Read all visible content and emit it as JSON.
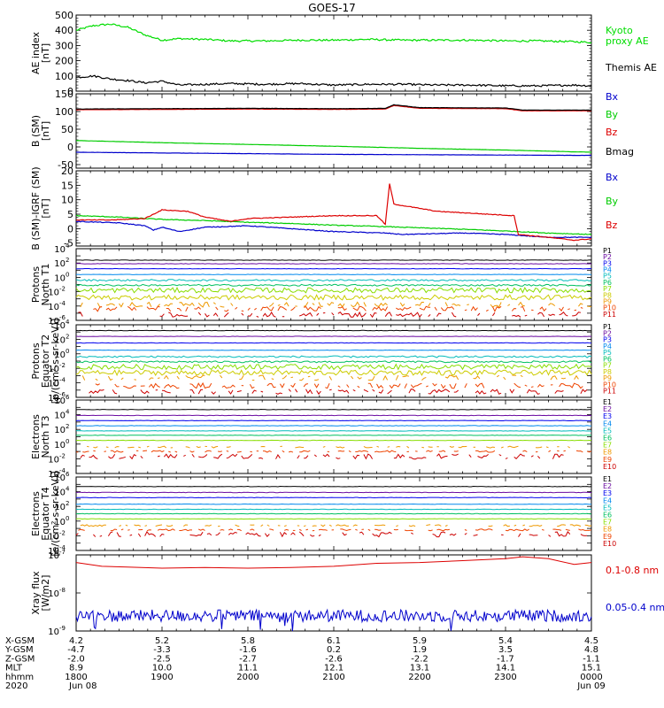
{
  "title": "GOES-17",
  "chart_data": [
    {
      "type": "line",
      "panel": "ae-index",
      "ylabel": [
        "AE index",
        "[nT]"
      ],
      "ylim": [
        0,
        500
      ],
      "yticks": [
        "0",
        "100",
        "200",
        "300",
        "400",
        "500"
      ],
      "series": [
        {
          "name": "Kyoto proxy AE",
          "legend": [
            "Kyoto",
            "proxy AE"
          ],
          "color": "#00dd00",
          "x": [
            0,
            0.2,
            0.4,
            0.6,
            0.8,
            1.0,
            1.2,
            1.5,
            1.8,
            2.2,
            2.6,
            3.0,
            3.4,
            3.8,
            4.2,
            4.6,
            5.0,
            5.4,
            5.8,
            6.0
          ],
          "y": [
            400,
            430,
            440,
            420,
            370,
            335,
            345,
            340,
            330,
            330,
            335,
            335,
            340,
            335,
            335,
            335,
            330,
            330,
            325,
            320
          ]
        },
        {
          "name": "Themis AE",
          "legend": [
            "Themis AE"
          ],
          "color": "#000000",
          "x": [
            0,
            0.2,
            0.4,
            0.6,
            0.8,
            1.0,
            1.2,
            1.5,
            1.8,
            2.2,
            2.6,
            3.0,
            3.4,
            3.8,
            4.2,
            4.6,
            5.0,
            5.4,
            5.8,
            6.0
          ],
          "y": [
            90,
            100,
            80,
            70,
            55,
            65,
            40,
            45,
            50,
            45,
            50,
            40,
            45,
            45,
            40,
            40,
            35,
            35,
            40,
            35
          ]
        }
      ]
    },
    {
      "type": "line",
      "panel": "b-sm",
      "ylabel": [
        "B (SM)",
        "[nT]"
      ],
      "ylim": [
        -60,
        150
      ],
      "yticks": [
        "-50",
        "0",
        "50",
        "100",
        "150"
      ],
      "ytick_values": [
        -50,
        0,
        50,
        100,
        150
      ],
      "series": [
        {
          "name": "Bx",
          "color": "#0000cc",
          "x": [
            0,
            1,
            2,
            3,
            4,
            5,
            6
          ],
          "y": [
            -15,
            -17,
            -19,
            -21,
            -22,
            -23,
            -24
          ]
        },
        {
          "name": "By",
          "color": "#00cc00",
          "x": [
            0,
            1,
            2,
            3,
            4,
            5,
            6
          ],
          "y": [
            18,
            12,
            7,
            2,
            -4,
            -9,
            -15
          ]
        },
        {
          "name": "Bz",
          "color": "#dd0000",
          "x": [
            0,
            1,
            2,
            3,
            3.6,
            3.7,
            4,
            5,
            5.2,
            6
          ],
          "y": [
            105,
            106,
            107,
            106,
            107,
            117,
            109,
            108,
            102,
            102
          ]
        },
        {
          "name": "Bmag",
          "color": "#000000",
          "x": [
            0,
            1,
            2,
            3,
            3.6,
            3.7,
            4,
            5,
            5.2,
            6
          ],
          "y": [
            107,
            108,
            109,
            108,
            109,
            119,
            111,
            110,
            104,
            104
          ]
        }
      ]
    },
    {
      "type": "line",
      "panel": "b-minus-igrf",
      "ylabel": [
        "B (SM)-IGRF (SM)",
        "[nT]"
      ],
      "ylim": [
        -6,
        20
      ],
      "yticks": [
        "-5",
        "0",
        "5",
        "10",
        "15",
        "20"
      ],
      "ytick_values": [
        -5,
        0,
        5,
        10,
        15,
        20
      ],
      "series": [
        {
          "name": "Bx",
          "color": "#0000cc",
          "x": [
            0,
            0.5,
            0.8,
            0.9,
            1.0,
            1.2,
            1.5,
            2.0,
            2.5,
            3.0,
            3.6,
            3.8,
            4.5,
            5.0,
            5.5,
            6.0
          ],
          "y": [
            2.5,
            2,
            1,
            -0.5,
            0.5,
            -1,
            0.5,
            1,
            0,
            -1,
            -1.5,
            -2,
            -1.5,
            -2,
            -3,
            -3
          ]
        },
        {
          "name": "By",
          "color": "#00cc00",
          "x": [
            0,
            0.5,
            1,
            1.5,
            2,
            2.5,
            3,
            3.5,
            4,
            4.5,
            5,
            5.5,
            6
          ],
          "y": [
            4.5,
            4,
            3.2,
            2.8,
            2.2,
            1.8,
            1.2,
            0.8,
            0.3,
            -0.2,
            -0.8,
            -1.5,
            -2
          ]
        },
        {
          "name": "Bz",
          "color": "#dd0000",
          "x": [
            0,
            0.4,
            0.8,
            1.0,
            1.3,
            1.5,
            1.8,
            2.0,
            2.5,
            3.0,
            3.5,
            3.6,
            3.65,
            3.7,
            3.9,
            4.2,
            4.8,
            5.1,
            5.15,
            5.5,
            5.8,
            6.0
          ],
          "y": [
            3,
            3,
            3.5,
            6.5,
            6,
            4,
            2.5,
            3.5,
            4,
            4.5,
            4.5,
            1.5,
            15.5,
            8.5,
            7.5,
            6,
            5,
            4.5,
            -2,
            -3,
            -4,
            -3.5
          ]
        }
      ]
    },
    {
      "type": "line",
      "panel": "protons-t1",
      "ylabel": [
        "Protons",
        "North T1"
      ],
      "ylog": true,
      "ylim_exp": [
        -6,
        4
      ],
      "yticks_exp": [
        -6,
        -4,
        -2,
        0,
        2,
        4
      ],
      "series": [
        {
          "name": "P1",
          "color": "#000000",
          "y": 2.4
        },
        {
          "name": "P2",
          "color": "#6a0aa0",
          "y": 1.9
        },
        {
          "name": "P3",
          "color": "#0000ee",
          "y": 1.2
        },
        {
          "name": "P4",
          "color": "#0088ee",
          "y": 0.4
        },
        {
          "name": "P5",
          "color": "#00bbbb",
          "y": -0.4
        },
        {
          "name": "P6",
          "color": "#00c060",
          "y": -1.1
        },
        {
          "name": "P7",
          "color": "#88dd00",
          "y": -1.8
        },
        {
          "name": "P8",
          "color": "#cccc00",
          "y": -2.8
        },
        {
          "name": "P9",
          "color": "#ee9900",
          "y": -3.8
        },
        {
          "name": "P10",
          "color": "#ee4400",
          "y": -4.4
        },
        {
          "name": "P11",
          "color": "#cc0000",
          "y": -5.2
        }
      ]
    },
    {
      "type": "line",
      "panel": "protons-t2",
      "ylabel": [
        "Protons",
        "Equator T2",
        "[p/(cm²-s-sr-keV)]"
      ],
      "ylog": true,
      "ylim_exp": [
        -6,
        4
      ],
      "yticks_exp": [
        -6,
        -4,
        -2,
        0,
        2,
        4
      ],
      "series": [
        {
          "name": "P1",
          "color": "#000000",
          "y": 3.2
        },
        {
          "name": "P2",
          "color": "#6a0aa0",
          "y": 2.4
        },
        {
          "name": "P3",
          "color": "#0000ee",
          "y": 1.5
        },
        {
          "name": "P4",
          "color": "#0088ee",
          "y": 0.5
        },
        {
          "name": "P5",
          "color": "#00bbbb",
          "y": -0.4
        },
        {
          "name": "P6",
          "color": "#00c060",
          "y": -1.1
        },
        {
          "name": "P7",
          "color": "#88dd00",
          "y": -1.8
        },
        {
          "name": "P8",
          "color": "#cccc00",
          "y": -2.6
        },
        {
          "name": "P9",
          "color": "#ee9900",
          "y": -3.3
        },
        {
          "name": "P10",
          "color": "#ee4400",
          "y": -4.4
        },
        {
          "name": "P11",
          "color": "#cc0000",
          "y": -5.2
        }
      ]
    },
    {
      "type": "line",
      "panel": "electrons-t3",
      "ylabel": [
        "Electrons",
        "North T3"
      ],
      "ylog": true,
      "ylim_exp": [
        -4,
        6
      ],
      "yticks_exp": [
        -4,
        -2,
        0,
        2,
        4,
        6
      ],
      "series": [
        {
          "name": "E1",
          "color": "#000000",
          "y": 4.7
        },
        {
          "name": "E2",
          "color": "#6a0aa0",
          "y": 3.9
        },
        {
          "name": "E3",
          "color": "#0000ee",
          "y": 3.2
        },
        {
          "name": "E4",
          "color": "#0088ee",
          "y": 2.5
        },
        {
          "name": "E5",
          "color": "#00bbbb",
          "y": 1.8
        },
        {
          "name": "E6",
          "color": "#00c060",
          "y": 1.2
        },
        {
          "name": "E7",
          "color": "#88dd00",
          "y": 0.5
        },
        {
          "name": "E8",
          "color": "#ee9900",
          "y": -0.4
        },
        {
          "name": "E9",
          "color": "#ee4400",
          "y": -1.0
        },
        {
          "name": "E10",
          "color": "#cc0000",
          "y": -1.7
        }
      ]
    },
    {
      "type": "line",
      "panel": "electrons-t4",
      "ylabel": [
        "Electrons",
        "Equator T4",
        "[e/(cm²-s-sr-keV)]"
      ],
      "ylog": true,
      "ylim_exp": [
        -4,
        6
      ],
      "yticks_exp": [
        -4,
        -2,
        0,
        2,
        4,
        6
      ],
      "series": [
        {
          "name": "E1",
          "color": "#000000",
          "y": 4.7
        },
        {
          "name": "E2",
          "color": "#6a0aa0",
          "y": 3.9
        },
        {
          "name": "E3",
          "color": "#0000ee",
          "y": 3.2
        },
        {
          "name": "E4",
          "color": "#0088ee",
          "y": 2.3
        },
        {
          "name": "E5",
          "color": "#00bbbb",
          "y": 1.6
        },
        {
          "name": "E6",
          "color": "#00c060",
          "y": 1.0
        },
        {
          "name": "E7",
          "color": "#88dd00",
          "y": 0.3
        },
        {
          "name": "E8",
          "color": "#ee9900",
          "y": -0.6
        },
        {
          "name": "E9",
          "color": "#ee4400",
          "y": -1.2
        },
        {
          "name": "E10",
          "color": "#cc0000",
          "y": -1.8
        }
      ]
    },
    {
      "type": "line",
      "panel": "xray-flux",
      "ylabel": [
        "Xray flux",
        "[W/m2]"
      ],
      "ylog": true,
      "ylim_exp": [
        -9,
        -7
      ],
      "yticks_exp": [
        -9,
        -8,
        -7
      ],
      "series": [
        {
          "name": "0.1-0.8 nm",
          "color": "#dd0000",
          "x": [
            0,
            0.3,
            0.6,
            1,
            1.5,
            2,
            2.5,
            3,
            3.5,
            4,
            4.5,
            5,
            5.2,
            5.5,
            5.8,
            6
          ],
          "y": [
            -7.2,
            -7.3,
            -7.32,
            -7.35,
            -7.33,
            -7.35,
            -7.33,
            -7.3,
            -7.22,
            -7.2,
            -7.15,
            -7.1,
            -7.05,
            -7.1,
            -7.25,
            -7.2
          ]
        },
        {
          "name": "0.05-0.4 nm",
          "color": "#0000cc",
          "noisy": true,
          "x": [
            0,
            1,
            2,
            3,
            4,
            5,
            6
          ],
          "y": [
            -8.6,
            -8.6,
            -8.62,
            -8.6,
            -8.6,
            -8.6,
            -8.62
          ]
        }
      ]
    }
  ],
  "x_axis": {
    "rows": [
      {
        "label": "X-GSM",
        "values": [
          "4.2",
          "5.2",
          "5.8",
          "6.1",
          "5.9",
          "5.4",
          "4.5"
        ]
      },
      {
        "label": "Y-GSM",
        "values": [
          "-4.7",
          "-3.3",
          "-1.6",
          "0.2",
          "1.9",
          "3.5",
          "4.8"
        ]
      },
      {
        "label": "Z-GSM",
        "values": [
          "-2.0",
          "-2.5",
          "-2.7",
          "-2.6",
          "-2.2",
          "-1.7",
          "-1.1"
        ]
      },
      {
        "label": "MLT",
        "values": [
          "8.9",
          "10.0",
          "11.1",
          "12.1",
          "13.1",
          "14.1",
          "15.1"
        ]
      },
      {
        "label": "hhmm",
        "values": [
          "1800",
          "1900",
          "2000",
          "2100",
          "2200",
          "2300",
          "0000"
        ]
      },
      {
        "label": "2020",
        "values": [
          "Jun 08",
          "",
          "",
          "",
          "",
          "",
          "Jun 09"
        ]
      }
    ]
  }
}
